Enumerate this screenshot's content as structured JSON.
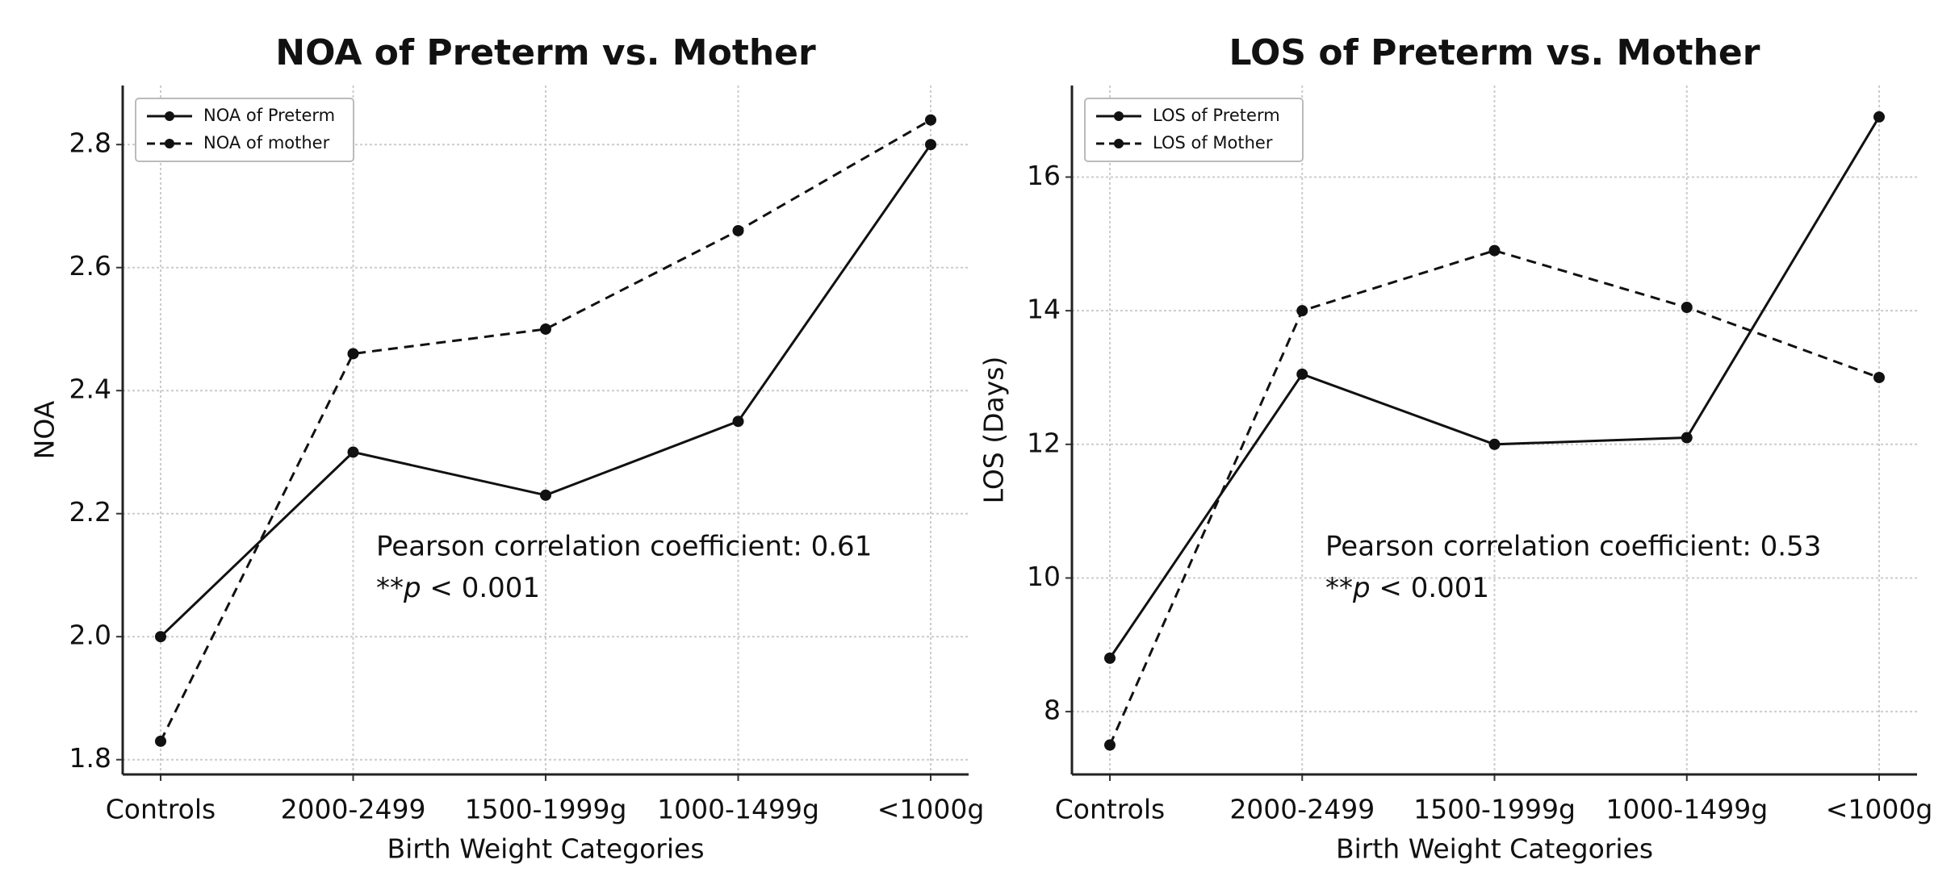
{
  "chart_data": [
    {
      "type": "line",
      "title": "NOA of Preterm vs. Mother",
      "x_label": "Birth Weight Categories",
      "y_label": "NOA",
      "categories": [
        "Controls",
        "2000-2499",
        "1500-1999g",
        "1000-1499g",
        "<1000g"
      ],
      "series": [
        {
          "name": "NOA of Preterm",
          "color": "#111111",
          "dash": "solid",
          "values": [
            2.0,
            2.3,
            2.23,
            2.35,
            2.8
          ]
        },
        {
          "name": "NOA of mother",
          "color": "#111111",
          "dash": "dashed",
          "values": [
            1.83,
            2.46,
            2.5,
            2.66,
            2.84
          ]
        }
      ],
      "ylim": [
        1.776,
        2.896
      ],
      "yticks": [
        1.8,
        {
          "value": 2.0,
          "label": "2.0"
        },
        2.2,
        2.4,
        2.6,
        2.8
      ],
      "grid": true,
      "legend": "upper-left",
      "annotation": {
        "line1": "Pearson correlation coefficient: 0.61",
        "prefix": "**",
        "italic": "p",
        "suffix": " < 0.001"
      }
    },
    {
      "type": "line",
      "title": "LOS of Preterm vs. Mother",
      "x_label": "Birth Weight Categories",
      "y_label": "LOS (Days)",
      "categories": [
        "Controls",
        "2000-2499",
        "1500-1999g",
        "1000-1499g",
        "<1000g"
      ],
      "series": [
        {
          "name": "LOS of Preterm",
          "color": "#111111",
          "dash": "solid",
          "values": [
            8.8,
            13.05,
            12.0,
            12.1,
            16.9
          ]
        },
        {
          "name": "LOS of Mother",
          "color": "#111111",
          "dash": "dashed",
          "values": [
            7.5,
            14.0,
            14.9,
            14.05,
            13.0
          ]
        }
      ],
      "ylim": [
        7.06,
        17.37
      ],
      "yticks": [
        8,
        10,
        12,
        14,
        16
      ],
      "grid": true,
      "legend": "upper-left",
      "annotation": {
        "line1": "Pearson correlation coefficient: 0.53",
        "prefix": "**",
        "italic": "p",
        "suffix": " < 0.001"
      }
    }
  ]
}
